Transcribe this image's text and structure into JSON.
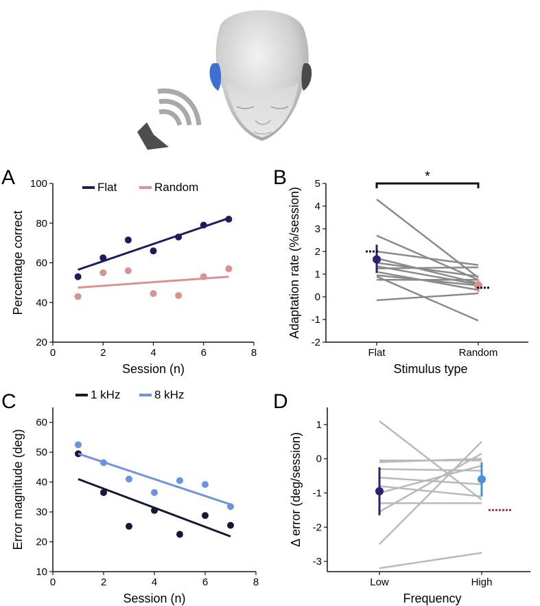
{
  "colors": {
    "flat": "#1f1b5e",
    "random": "#d99191",
    "khz1": "#141a33",
    "khz8": "#6b93e0",
    "gray_line": "#8a8a8a",
    "light_gray_line": "#b9b9b9",
    "low_point": "#2b2170",
    "high_point": "#4a90d9",
    "red_dot": "#a83a3a"
  },
  "illustration": {
    "icons": [
      "head-icon",
      "speaker-icon",
      "sound-waves-icon"
    ]
  },
  "chart_data": [
    {
      "panel": "A",
      "type": "scatter",
      "xlabel": "Session (n)",
      "ylabel": "Percentage correct",
      "xlim": [
        0,
        8
      ],
      "ylim": [
        20,
        100
      ],
      "xticks": [
        0,
        2,
        4,
        6,
        8
      ],
      "yticks": [
        20,
        40,
        60,
        80,
        100
      ],
      "legend_position": "top",
      "series": [
        {
          "name": "Flat",
          "color": "#1f1b5e",
          "x": [
            1,
            2,
            3,
            4,
            5,
            6,
            7
          ],
          "y": [
            53,
            62.5,
            71.5,
            66,
            73,
            79,
            82
          ],
          "fit": [
            [
              1,
              56.5
            ],
            [
              7,
              82.5
            ]
          ]
        },
        {
          "name": "Random",
          "color": "#d99191",
          "x": [
            1,
            2,
            3,
            4,
            5,
            6,
            7
          ],
          "y": [
            43,
            55,
            56,
            44.5,
            43.5,
            53,
            57
          ],
          "fit": [
            [
              1,
              47.5
            ],
            [
              7,
              53
            ]
          ]
        }
      ]
    },
    {
      "panel": "B",
      "type": "line",
      "xlabel": "Stimulus type",
      "ylabel": "Adaptation rate (%/session)",
      "categories": [
        "Flat",
        "Random"
      ],
      "ylim": [
        -2,
        5
      ],
      "yticks": [
        -2,
        -1,
        0,
        1,
        2,
        3,
        4,
        5
      ],
      "significance": "*",
      "paired_lines": [
        [
          4.3,
          0.85
        ],
        [
          2.7,
          0.75
        ],
        [
          2.0,
          1.4
        ],
        [
          1.7,
          0.6
        ],
        [
          1.5,
          0.9
        ],
        [
          1.35,
          0.55
        ],
        [
          1.25,
          1.3
        ],
        [
          1.1,
          0.3
        ],
        [
          0.95,
          0.5
        ],
        [
          0.75,
          0.75
        ],
        [
          -0.15,
          0.15
        ],
        [
          0.9,
          -1.05
        ]
      ],
      "means": [
        {
          "category": "Flat",
          "mean": 1.65,
          "err_low": 1.05,
          "err_high": 2.3,
          "dotted": 2.0,
          "color": "#2b2170"
        },
        {
          "category": "Random",
          "mean": 0.5,
          "err_low": 0.2,
          "err_high": 0.75,
          "dotted": 0.4,
          "color": "#d99191"
        }
      ]
    },
    {
      "panel": "C",
      "type": "scatter",
      "xlabel": "Session (n)",
      "ylabel": "Error magnitude (deg)",
      "xlim": [
        0,
        8
      ],
      "ylim": [
        10,
        65
      ],
      "xticks": [
        0,
        2,
        4,
        6,
        8
      ],
      "yticks": [
        10,
        20,
        30,
        40,
        50,
        60
      ],
      "legend_position": "top",
      "series": [
        {
          "name": "1 kHz",
          "color": "#141a33",
          "x": [
            1,
            2,
            3,
            4,
            5,
            6,
            7
          ],
          "y": [
            49.5,
            36.5,
            25.2,
            30.5,
            22.5,
            28.8,
            25.5
          ],
          "fit": [
            [
              1,
              41
            ],
            [
              7,
              21.8
            ]
          ]
        },
        {
          "name": "8 kHz",
          "color": "#6b93e0",
          "x": [
            1,
            2,
            3,
            4,
            5,
            6,
            7
          ],
          "y": [
            52.5,
            46.5,
            41,
            36.5,
            40.5,
            39.2,
            31.8
          ],
          "fit": [
            [
              1,
              49.5
            ],
            [
              7,
              32.5
            ]
          ]
        }
      ]
    },
    {
      "panel": "D",
      "type": "line",
      "xlabel": "Frequency",
      "ylabel": "Δ error (deg/session)",
      "categories": [
        "Low",
        "High"
      ],
      "ylim": [
        -3.3,
        1.5
      ],
      "yticks": [
        -3,
        -2,
        -1,
        0,
        1
      ],
      "paired_lines": [
        [
          1.1,
          -1.2
        ],
        [
          -0.05,
          -0.05
        ],
        [
          -0.1,
          0.0
        ],
        [
          -0.3,
          -0.35
        ],
        [
          -0.55,
          -0.75
        ],
        [
          -0.8,
          -1.1
        ],
        [
          -1.3,
          -1.3
        ],
        [
          -1.0,
          -0.2
        ],
        [
          -1.55,
          0.15
        ],
        [
          -2.5,
          0.5
        ],
        [
          -3.2,
          -2.75
        ]
      ],
      "means": [
        {
          "category": "Low",
          "mean": -0.95,
          "err_low": -1.65,
          "err_high": -0.25,
          "color": "#2b2170"
        },
        {
          "category": "High",
          "mean": -0.6,
          "err_low": -1.1,
          "err_high": -0.1,
          "color": "#4a90d9"
        }
      ],
      "dotted_reference": {
        "category": "High",
        "value": -1.5,
        "color": "#a83a3a"
      }
    }
  ],
  "panels": {
    "A": {
      "label": "A"
    },
    "B": {
      "label": "B"
    },
    "C": {
      "label": "C"
    },
    "D": {
      "label": "D"
    }
  }
}
